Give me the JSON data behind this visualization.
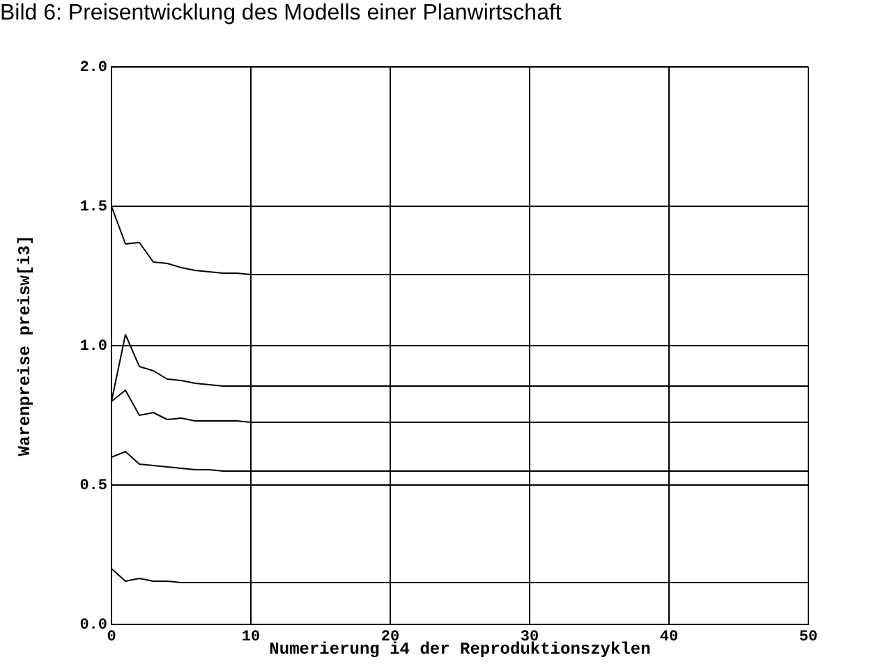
{
  "chart_data": {
    "type": "line",
    "title": "Bild 6: Preisentwicklung des Modells einer Planwirtschaft",
    "xlabel": "Numerierung i4 der Reproduktionszyklen",
    "ylabel": "Warenpreise preisw[i3]",
    "x": [
      0,
      1,
      2,
      3,
      4,
      5,
      6,
      7,
      8,
      9,
      10,
      50
    ],
    "series": [
      {
        "color": "#000000",
        "values": [
          1.5,
          1.365,
          1.37,
          1.3,
          1.295,
          1.28,
          1.27,
          1.265,
          1.26,
          1.26,
          1.255,
          1.255
        ]
      },
      {
        "color": "#000000",
        "values": [
          0.8,
          1.04,
          0.925,
          0.91,
          0.88,
          0.875,
          0.865,
          0.86,
          0.855,
          0.855,
          0.855,
          0.855
        ]
      },
      {
        "color": "#000000",
        "values": [
          0.8,
          0.84,
          0.75,
          0.76,
          0.735,
          0.74,
          0.73,
          0.73,
          0.73,
          0.73,
          0.725,
          0.725
        ]
      },
      {
        "color": "#000000",
        "values": [
          0.6,
          0.62,
          0.575,
          0.57,
          0.565,
          0.56,
          0.555,
          0.555,
          0.55,
          0.55,
          0.55,
          0.55
        ]
      },
      {
        "color": "#000000",
        "values": [
          0.2,
          0.155,
          0.165,
          0.155,
          0.155,
          0.15,
          0.15,
          0.15,
          0.15,
          0.15,
          0.15,
          0.15
        ]
      }
    ],
    "xlim": [
      0,
      50
    ],
    "xticks": [
      0,
      10,
      20,
      30,
      40,
      50
    ],
    "ylim": [
      0,
      2
    ],
    "yticks": [
      {
        "value": 0,
        "label": "0.0"
      },
      0.5,
      {
        "value": 1,
        "label": "1.0"
      },
      1.5,
      {
        "value": 2,
        "label": "2.0"
      }
    ],
    "grid": true,
    "marker": "none",
    "line_style": "solid"
  }
}
